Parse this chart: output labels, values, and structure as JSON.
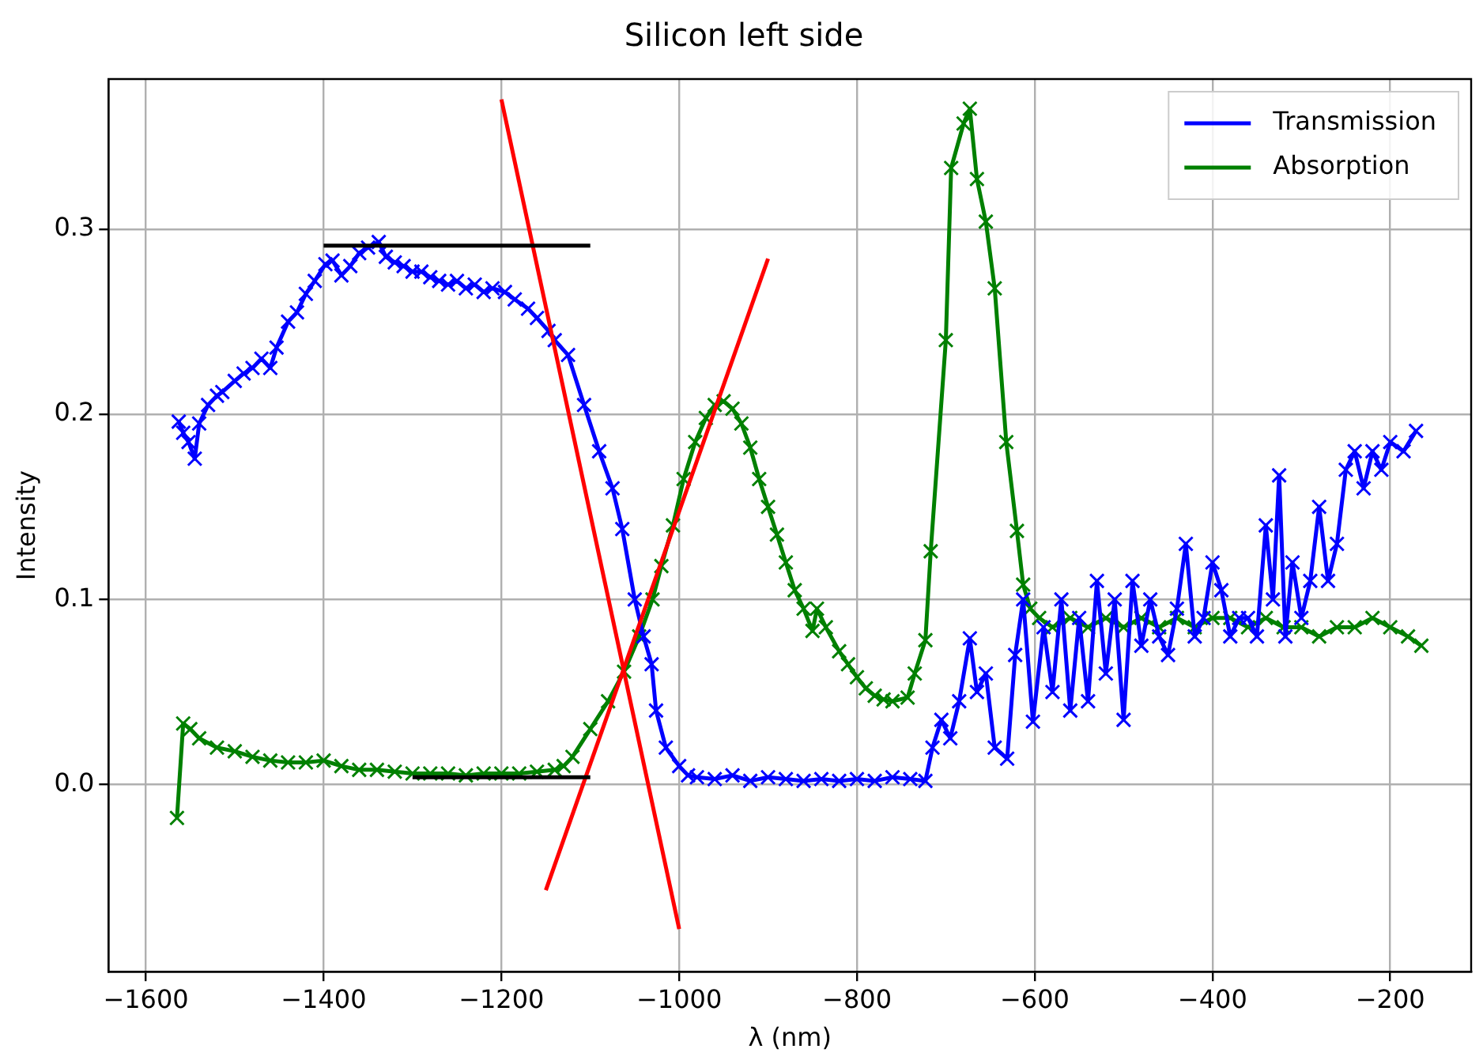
{
  "chart_data": {
    "type": "line",
    "title": "Silicon left side",
    "xlabel": "λ (nm)",
    "ylabel": "Intensity",
    "xlim": [
      -1642,
      -109
    ],
    "ylim": [
      -0.101,
      0.381
    ],
    "xticks": [
      {
        "value": -1600,
        "label": "−1600"
      },
      {
        "value": -1400,
        "label": "−1400"
      },
      {
        "value": -1200,
        "label": "−1200"
      },
      {
        "value": -1000,
        "label": "−1000"
      },
      {
        "value": -800,
        "label": "−800"
      },
      {
        "value": -600,
        "label": "−600"
      },
      {
        "value": -400,
        "label": "−400"
      },
      {
        "value": -200,
        "label": "−200"
      }
    ],
    "yticks": [
      {
        "value": 0,
        "label": "0.0"
      },
      0.1,
      0.2,
      0.3
    ],
    "grid": true,
    "legend": "top right",
    "marker": "cross",
    "line_style": "solid",
    "series": [
      {
        "name": "Transmission",
        "color": "#0000ff",
        "x": [
          -1563,
          -1558,
          -1552,
          -1545,
          -1540,
          -1530,
          -1520,
          -1514,
          -1500,
          -1490,
          -1480,
          -1470,
          -1460,
          -1453,
          -1440,
          -1430,
          -1420,
          -1410,
          -1398,
          -1390,
          -1380,
          -1370,
          -1360,
          -1350,
          -1338,
          -1330,
          -1320,
          -1310,
          -1300,
          -1290,
          -1280,
          -1270,
          -1260,
          -1250,
          -1240,
          -1230,
          -1220,
          -1210,
          -1196,
          -1185,
          -1170,
          -1160,
          -1147,
          -1140,
          -1125,
          -1107,
          -1090,
          -1075,
          -1064,
          -1050,
          -1040,
          -1031,
          -1026,
          -1015,
          -1000,
          -990,
          -980,
          -960,
          -940,
          -920,
          -900,
          -880,
          -860,
          -840,
          -820,
          -800,
          -780,
          -760,
          -740,
          -723,
          -715,
          -705,
          -695,
          -685,
          -673,
          -665,
          -655,
          -645,
          -631,
          -622,
          -613,
          -602,
          -590,
          -580,
          -570,
          -560,
          -550,
          -540,
          -530,
          -520,
          -510,
          -500,
          -490,
          -480,
          -470,
          -460,
          -450,
          -440,
          -430,
          -420,
          -410,
          -400,
          -390,
          -380,
          -370,
          -360,
          -350,
          -340,
          -332,
          -325,
          -318,
          -310,
          -300,
          -290,
          -280,
          -270,
          -260,
          -250,
          -240,
          -230,
          -220,
          -210,
          -200,
          -185,
          -171
        ],
        "values": [
          0.196,
          0.19,
          0.185,
          0.176,
          0.195,
          0.205,
          0.21,
          0.212,
          0.218,
          0.222,
          0.225,
          0.23,
          0.225,
          0.236,
          0.25,
          0.255,
          0.265,
          0.272,
          0.281,
          0.283,
          0.275,
          0.28,
          0.287,
          0.29,
          0.293,
          0.285,
          0.282,
          0.28,
          0.277,
          0.277,
          0.274,
          0.272,
          0.27,
          0.272,
          0.268,
          0.27,
          0.266,
          0.268,
          0.266,
          0.262,
          0.257,
          0.252,
          0.245,
          0.24,
          0.232,
          0.205,
          0.18,
          0.16,
          0.138,
          0.1,
          0.08,
          0.065,
          0.04,
          0.02,
          0.01,
          0.005,
          0.004,
          0.003,
          0.005,
          0.002,
          0.004,
          0.003,
          0.002,
          0.003,
          0.002,
          0.003,
          0.002,
          0.004,
          0.003,
          0.002,
          0.02,
          0.035,
          0.025,
          0.045,
          0.079,
          0.05,
          0.06,
          0.02,
          0.014,
          0.07,
          0.1,
          0.034,
          0.085,
          0.05,
          0.1,
          0.04,
          0.09,
          0.045,
          0.11,
          0.06,
          0.1,
          0.035,
          0.11,
          0.075,
          0.1,
          0.08,
          0.07,
          0.095,
          0.13,
          0.08,
          0.09,
          0.12,
          0.105,
          0.08,
          0.09,
          0.09,
          0.08,
          0.14,
          0.1,
          0.167,
          0.08,
          0.12,
          0.09,
          0.11,
          0.15,
          0.11,
          0.13,
          0.17,
          0.18,
          0.16,
          0.18,
          0.17,
          0.185,
          0.18,
          0.191
        ]
      },
      {
        "name": "Absorption",
        "color": "#008000",
        "x": [
          -1565,
          -1558,
          -1550,
          -1540,
          -1520,
          -1500,
          -1480,
          -1460,
          -1440,
          -1420,
          -1400,
          -1380,
          -1360,
          -1340,
          -1320,
          -1300,
          -1280,
          -1260,
          -1240,
          -1220,
          -1200,
          -1180,
          -1160,
          -1140,
          -1130,
          -1120,
          -1100,
          -1080,
          -1062,
          -1045,
          -1030,
          -1020,
          -1007,
          -995,
          -982,
          -970,
          -960,
          -950,
          -940,
          -930,
          -920,
          -910,
          -900,
          -890,
          -880,
          -870,
          -860,
          -850,
          -845,
          -835,
          -820,
          -810,
          -800,
          -790,
          -780,
          -770,
          -760,
          -743,
          -735,
          -723,
          -717,
          -700,
          -694,
          -680,
          -673,
          -665,
          -655,
          -645,
          -632,
          -620,
          -613,
          -605,
          -595,
          -580,
          -560,
          -540,
          -520,
          -500,
          -480,
          -460,
          -440,
          -420,
          -400,
          -380,
          -360,
          -340,
          -320,
          -300,
          -280,
          -260,
          -240,
          -220,
          -200,
          -180,
          -165
        ],
        "values": [
          -0.018,
          0.033,
          0.03,
          0.025,
          0.02,
          0.018,
          0.015,
          0.013,
          0.012,
          0.012,
          0.013,
          0.01,
          0.008,
          0.008,
          0.007,
          0.006,
          0.006,
          0.006,
          0.005,
          0.006,
          0.006,
          0.006,
          0.007,
          0.008,
          0.01,
          0.015,
          0.03,
          0.045,
          0.061,
          0.08,
          0.1,
          0.118,
          0.14,
          0.165,
          0.185,
          0.198,
          0.205,
          0.207,
          0.203,
          0.195,
          0.182,
          0.165,
          0.15,
          0.135,
          0.12,
          0.105,
          0.095,
          0.083,
          0.095,
          0.085,
          0.072,
          0.065,
          0.058,
          0.052,
          0.048,
          0.046,
          0.045,
          0.047,
          0.06,
          0.078,
          0.126,
          0.24,
          0.333,
          0.357,
          0.365,
          0.327,
          0.304,
          0.268,
          0.185,
          0.137,
          0.108,
          0.095,
          0.09,
          0.085,
          0.09,
          0.085,
          0.09,
          0.085,
          0.09,
          0.085,
          0.09,
          0.085,
          0.09,
          0.09,
          0.085,
          0.09,
          0.085,
          0.085,
          0.08,
          0.085,
          0.085,
          0.09,
          0.085,
          0.08,
          0.075
        ]
      },
      {
        "type": "line",
        "color": "#000000",
        "marker": "none",
        "x": [
          -1400,
          -1100
        ],
        "values": [
          0.291,
          0.291
        ]
      },
      {
        "type": "line",
        "color": "#000000",
        "marker": "none",
        "x": [
          -1300,
          -1100
        ],
        "values": [
          0.004,
          0.004
        ]
      },
      {
        "type": "line",
        "color": "#ff0000",
        "marker": "none",
        "x": [
          -1200,
          -1000
        ],
        "values": [
          0.37,
          -0.078
        ]
      },
      {
        "type": "line",
        "color": "#ff0000",
        "marker": "none",
        "x": [
          -1150,
          -900
        ],
        "values": [
          -0.057,
          0.284
        ]
      }
    ]
  }
}
